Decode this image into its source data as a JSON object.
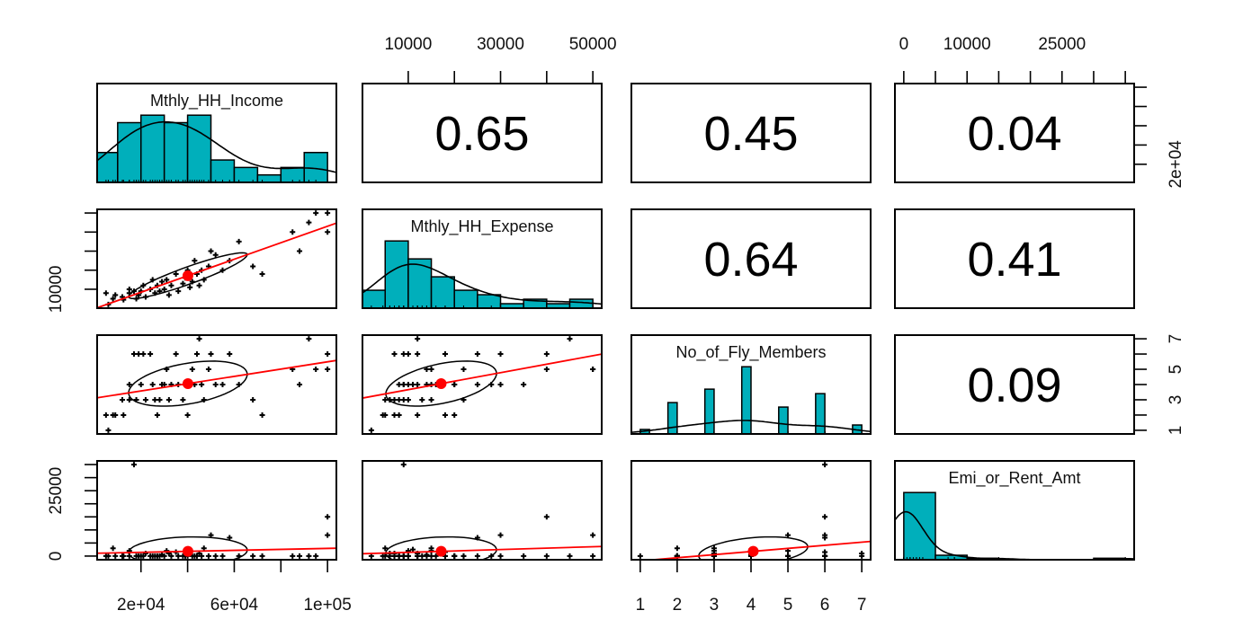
{
  "chart_data": {
    "type": "scatter-matrix",
    "variables": [
      "Mthly_HH_Income",
      "Mthly_HH_Expense",
      "No_of_Fly_Members",
      "Emi_or_Rent_Amt"
    ],
    "colors": {
      "histogram_fill": "#00AFBB",
      "regression_line": "#FF0000",
      "mean_point": "#FF0000",
      "points": "#000000",
      "ellipse": "#000000"
    },
    "histogram_breaks": [
      {
        "start": 0,
        "step": 10000
      },
      {
        "start": 0,
        "step": 5000
      },
      {
        "start": 1,
        "step": 0.25
      },
      {
        "start": 0,
        "step": 5000
      }
    ],
    "correlations": [
      {
        "row": 0,
        "col": 1,
        "text": "0.65"
      },
      {
        "row": 0,
        "col": 2,
        "text": "0.45"
      },
      {
        "row": 0,
        "col": 3,
        "text": "0.04"
      },
      {
        "row": 1,
        "col": 2,
        "text": "0.64"
      },
      {
        "row": 1,
        "col": 3,
        "text": "0.41"
      },
      {
        "row": 2,
        "col": 3,
        "text": "0.09"
      }
    ],
    "axes": [
      {
        "side": "top",
        "var": 1,
        "ticks": [
          10000,
          20000,
          30000,
          40000,
          50000
        ],
        "labels": [
          {
            "value": 10000,
            "text": "10000"
          },
          {
            "value": 30000,
            "text": "30000"
          },
          {
            "value": 50000,
            "text": "50000"
          }
        ]
      },
      {
        "side": "top",
        "var": 3,
        "ticks": [
          0,
          5000,
          10000,
          15000,
          20000,
          25000,
          30000,
          35000
        ],
        "labels": [
          {
            "value": 0,
            "text": "0"
          },
          {
            "value": 10000,
            "text": "10000"
          },
          {
            "value": 25000,
            "text": "25000"
          }
        ]
      },
      {
        "side": "bottom",
        "var": 0,
        "ticks": [
          20000,
          40000,
          60000,
          80000,
          100000
        ],
        "labels": [
          {
            "value": 20000,
            "text": "2e+04"
          },
          {
            "value": 60000,
            "text": "6e+04"
          },
          {
            "value": 100000,
            "text": "1e+05"
          }
        ]
      },
      {
        "side": "bottom",
        "var": 2,
        "ticks": [
          1,
          2,
          3,
          4,
          5,
          6,
          7
        ],
        "labels": [
          {
            "value": 1,
            "text": "1"
          },
          {
            "value": 2,
            "text": "2"
          },
          {
            "value": 3,
            "text": "3"
          },
          {
            "value": 4,
            "text": "4"
          },
          {
            "value": 5,
            "text": "5"
          },
          {
            "value": 6,
            "text": "6"
          },
          {
            "value": 7,
            "text": "7"
          }
        ]
      },
      {
        "side": "right",
        "var": 0,
        "ticks": [
          20000,
          40000,
          60000,
          80000,
          100000
        ],
        "labels": [
          {
            "value": 20000,
            "text": "2e+04"
          }
        ]
      },
      {
        "side": "right",
        "var": 2,
        "ticks": [
          1,
          2,
          3,
          4,
          5,
          6,
          7
        ],
        "labels": [
          {
            "value": 1,
            "text": "1"
          },
          {
            "value": 3,
            "text": "3"
          },
          {
            "value": 5,
            "text": "5"
          },
          {
            "value": 7,
            "text": "7"
          }
        ]
      },
      {
        "side": "left",
        "var": 1,
        "ticks": [
          10000,
          20000,
          30000,
          40000,
          50000
        ],
        "labels": [
          {
            "value": 10000,
            "text": "10000"
          }
        ]
      },
      {
        "side": "left",
        "var": 3,
        "ticks": [
          0,
          5000,
          10000,
          15000,
          20000,
          25000,
          30000,
          35000
        ],
        "labels": [
          {
            "value": 0,
            "text": "0"
          },
          {
            "value": 25000,
            "text": "25000"
          }
        ]
      }
    ],
    "observations": [
      [
        5000,
        8000,
        2,
        0
      ],
      [
        6000,
        2000,
        1,
        0
      ],
      [
        8000,
        5000,
        2,
        3000
      ],
      [
        9000,
        7000,
        2,
        0
      ],
      [
        12000,
        6000,
        3,
        0
      ],
      [
        12500,
        4500,
        2,
        0
      ],
      [
        15000,
        8000,
        4,
        0
      ],
      [
        15000,
        10000,
        3,
        2000
      ],
      [
        17000,
        9000,
        6,
        35000
      ],
      [
        18000,
        5000,
        3,
        0
      ],
      [
        19000,
        7000,
        6,
        0
      ],
      [
        20000,
        9000,
        4,
        0
      ],
      [
        21000,
        12000,
        6,
        0
      ],
      [
        22000,
        6000,
        3,
        1000
      ],
      [
        24000,
        10000,
        6,
        0
      ],
      [
        25000,
        15000,
        4,
        0
      ],
      [
        26000,
        8000,
        3,
        0
      ],
      [
        27000,
        12000,
        2,
        0
      ],
      [
        28000,
        9000,
        3,
        0
      ],
      [
        29000,
        14000,
        4,
        500
      ],
      [
        30000,
        10000,
        4,
        0
      ],
      [
        31000,
        15000,
        5,
        2000
      ],
      [
        32000,
        7000,
        3,
        1000
      ],
      [
        33000,
        12000,
        4,
        0
      ],
      [
        35000,
        18000,
        6,
        1500
      ],
      [
        36000,
        9000,
        4,
        0
      ],
      [
        38000,
        13000,
        3,
        0
      ],
      [
        39000,
        16000,
        4,
        0
      ],
      [
        40000,
        20000,
        2,
        0
      ],
      [
        41000,
        11000,
        4,
        2500
      ],
      [
        42000,
        14000,
        5,
        0
      ],
      [
        43000,
        25000,
        4,
        0
      ],
      [
        44000,
        18000,
        6,
        0
      ],
      [
        45000,
        12000,
        7,
        1000
      ],
      [
        46000,
        20000,
        4,
        0
      ],
      [
        47000,
        15000,
        3,
        3000
      ],
      [
        49000,
        22000,
        5,
        0
      ],
      [
        50000,
        30000,
        6,
        8000
      ],
      [
        52000,
        28000,
        4,
        0
      ],
      [
        55000,
        20000,
        4,
        0
      ],
      [
        58000,
        25000,
        6,
        7000
      ],
      [
        62000,
        35000,
        4,
        0
      ],
      [
        68000,
        22000,
        3,
        0
      ],
      [
        72000,
        18000,
        2,
        0
      ],
      [
        85000,
        40000,
        5,
        0
      ],
      [
        88000,
        30000,
        4,
        0
      ],
      [
        92000,
        45000,
        7,
        0
      ],
      [
        95000,
        50000,
        5,
        0
      ],
      [
        100000,
        40000,
        6,
        15000
      ],
      [
        100000,
        50000,
        5,
        8000
      ]
    ]
  }
}
